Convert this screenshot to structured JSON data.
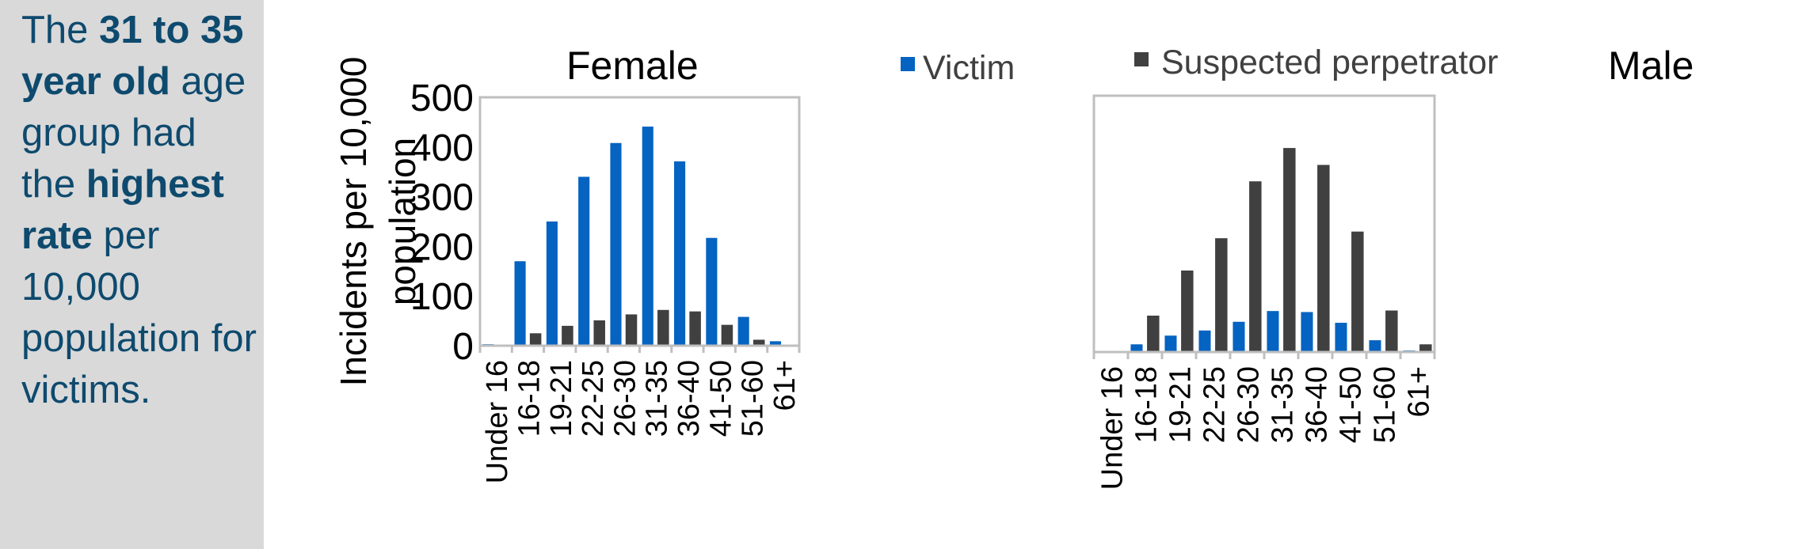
{
  "summary": {
    "parts": [
      {
        "text": "The ",
        "bold": false
      },
      {
        "text": "31 to 35 year old",
        "bold": true
      },
      {
        "text": " age group had the ",
        "bold": false
      },
      {
        "text": "highest rate",
        "bold": true
      },
      {
        "text": " per 10,000 population for victims.",
        "bold": false
      }
    ]
  },
  "colors": {
    "victim": "#0563c1",
    "perpetrator": "#404040",
    "frame": "#bfbfbf",
    "text": "#0e4a6e"
  },
  "chart_data": [
    {
      "type": "bar",
      "title": "Female",
      "ylabel": "Incidents per 10,000 population",
      "ylabel_lines": [
        "Incidents per 10,000",
        "population"
      ],
      "ylim": [
        0,
        500
      ],
      "yticks": [
        "0",
        "100",
        "200",
        "300",
        "400",
        "500"
      ],
      "legend": "Victim",
      "categories": [
        "Under 16",
        "16-18",
        "19-21",
        "22-25",
        "26-30",
        "31-35",
        "36-40",
        "41-50",
        "51-60",
        "61+"
      ],
      "series": [
        {
          "name": "Victim",
          "values": [
            3,
            170,
            250,
            340,
            408,
            441,
            371,
            217,
            58,
            9
          ]
        },
        {
          "name": "Suspected perpetrator",
          "values": [
            0,
            25,
            40,
            51,
            63,
            72,
            69,
            42,
            12,
            0
          ]
        }
      ]
    },
    {
      "type": "bar",
      "title": "Male",
      "ylim": [
        0,
        500
      ],
      "legend": "Suspected perpetrator",
      "categories": [
        "Under 16",
        "16-18",
        "19-21",
        "22-25",
        "26-30",
        "31-35",
        "36-40",
        "41-50",
        "51-60",
        "61+"
      ],
      "series": [
        {
          "name": "Victim",
          "values": [
            0,
            15,
            32,
            42,
            59,
            80,
            78,
            57,
            23,
            3
          ]
        },
        {
          "name": "Suspected perpetrator",
          "values": [
            0,
            71,
            159,
            222,
            333,
            398,
            365,
            235,
            81,
            15
          ]
        }
      ]
    }
  ]
}
